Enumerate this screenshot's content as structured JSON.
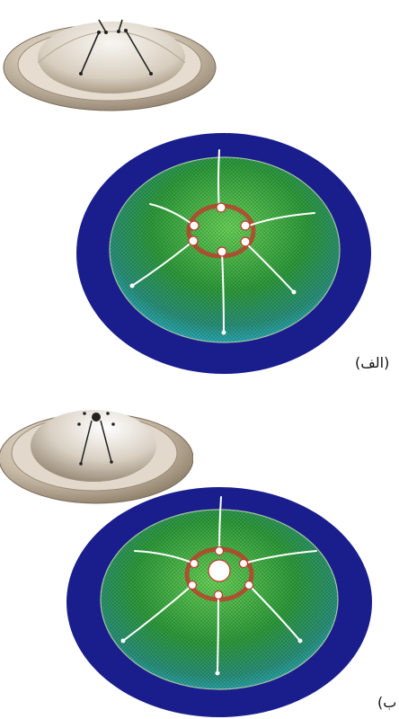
{
  "figure": {
    "panel_a": {
      "label": "(الف)"
    },
    "panel_b": {
      "label": "ب)"
    }
  },
  "colors": {
    "outer_ring": "#1a1e8c",
    "mesh_light": "#49c34a",
    "mesh_dark": "#1e7a2a",
    "mesh_edge": "#2aa7b5",
    "metal": "#c8b9a3",
    "crack_line": "#ffffff",
    "hole_ring": "#c0392b"
  }
}
